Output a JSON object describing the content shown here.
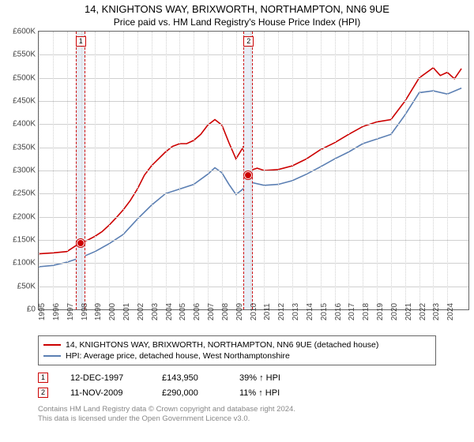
{
  "title": "14, KNIGHTONS WAY, BRIXWORTH, NORTHAMPTON, NN6 9UE",
  "subtitle": "Price paid vs. HM Land Registry's House Price Index (HPI)",
  "chart": {
    "type": "line",
    "background_color": "#ffffff",
    "grid_color": "#d0d0d0",
    "border_color": "#666666",
    "ylim": [
      0,
      600000
    ],
    "ytick_step": 50000,
    "yticks": [
      "£0",
      "£50K",
      "£100K",
      "£150K",
      "£200K",
      "£250K",
      "£300K",
      "£350K",
      "£400K",
      "£450K",
      "£500K",
      "£550K",
      "£600K"
    ],
    "xlim": [
      1995,
      2025.5
    ],
    "xticks": [
      1995,
      1996,
      1997,
      1998,
      1999,
      2000,
      2001,
      2002,
      2003,
      2004,
      2005,
      2006,
      2007,
      2008,
      2009,
      2010,
      2011,
      2012,
      2013,
      2014,
      2015,
      2016,
      2017,
      2018,
      2019,
      2020,
      2021,
      2022,
      2023,
      2024
    ],
    "label_fontsize": 10,
    "line_width": 1.6,
    "series": {
      "property": {
        "label": "14, KNIGHTONS WAY, BRIXWORTH, NORTHAMPTON, NN6 9UE (detached house)",
        "color": "#cc0000",
        "x": [
          1995,
          1996,
          1997,
          1997.96,
          1998.5,
          1999,
          1999.5,
          2000,
          2000.5,
          2001,
          2001.5,
          2002,
          2002.5,
          2003,
          2003.5,
          2004,
          2004.5,
          2005,
          2005.5,
          2006,
          2006.5,
          2007,
          2007.5,
          2008,
          2008.5,
          2009,
          2009.5,
          2009.87,
          2010,
          2010.5,
          2011,
          2012,
          2013,
          2014,
          2015,
          2016,
          2017,
          2018,
          2019,
          2020,
          2021,
          2022,
          2023,
          2023.5,
          2024,
          2024.5,
          2025
        ],
        "y": [
          120000,
          122000,
          125000,
          143950,
          150000,
          158000,
          168000,
          182000,
          198000,
          215000,
          235000,
          260000,
          290000,
          310000,
          325000,
          340000,
          352000,
          358000,
          358000,
          365000,
          378000,
          398000,
          410000,
          398000,
          360000,
          325000,
          350000,
          290000,
          300000,
          305000,
          300000,
          302000,
          310000,
          325000,
          345000,
          360000,
          378000,
          395000,
          405000,
          410000,
          450000,
          500000,
          522000,
          505000,
          512000,
          498000,
          520000
        ]
      },
      "hpi": {
        "label": "HPI: Average price, detached house, West Northamptonshire",
        "color": "#5b7fb3",
        "x": [
          1995,
          1996,
          1997,
          1998,
          1999,
          2000,
          2001,
          2002,
          2003,
          2004,
          2005,
          2006,
          2007,
          2007.5,
          2008,
          2008.5,
          2009,
          2009.5,
          2010,
          2011,
          2012,
          2013,
          2014,
          2015,
          2016,
          2017,
          2018,
          2019,
          2020,
          2021,
          2022,
          2023,
          2024,
          2025
        ],
        "y": [
          92000,
          95000,
          102000,
          112000,
          125000,
          142000,
          162000,
          195000,
          225000,
          250000,
          260000,
          270000,
          292000,
          306000,
          295000,
          270000,
          248000,
          260000,
          275000,
          268000,
          270000,
          278000,
          292000,
          308000,
          325000,
          340000,
          358000,
          368000,
          378000,
          420000,
          468000,
          472000,
          465000,
          478000
        ]
      }
    },
    "sale_markers": [
      {
        "idx": "1",
        "x": 1997.96,
        "y": 143950,
        "color": "#cc0000",
        "band_color": "#e8eef7"
      },
      {
        "idx": "2",
        "x": 2009.87,
        "y": 290000,
        "color": "#cc0000",
        "band_color": "#e8eef7"
      }
    ]
  },
  "legend": {
    "border_color": "#666666",
    "rows": [
      {
        "color": "#cc0000",
        "text": "14, KNIGHTONS WAY, BRIXWORTH, NORTHAMPTON, NN6 9UE (detached house)"
      },
      {
        "color": "#5b7fb3",
        "text": "HPI: Average price, detached house, West Northamptonshire"
      }
    ]
  },
  "events": [
    {
      "idx": "1",
      "date": "12-DEC-1997",
      "price": "£143,950",
      "hpi_pct": "39% ↑ HPI",
      "border_color": "#cc0000"
    },
    {
      "idx": "2",
      "date": "11-NOV-2009",
      "price": "£290,000",
      "hpi_pct": "11% ↑ HPI",
      "border_color": "#cc0000"
    }
  ],
  "footer_line1": "Contains HM Land Registry data © Crown copyright and database right 2024.",
  "footer_line2": "This data is licensed under the Open Government Licence v3.0."
}
